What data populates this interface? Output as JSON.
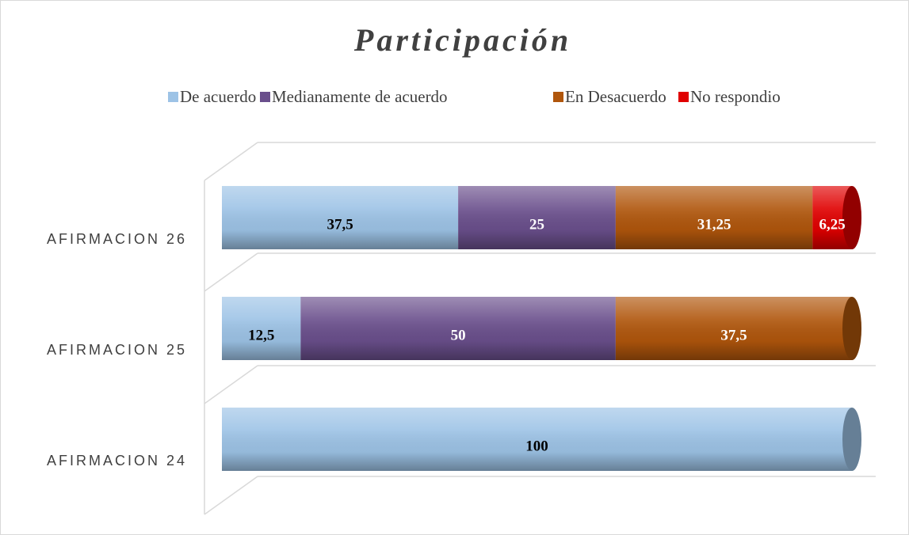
{
  "chart_data": {
    "type": "stacked-bar-horizontal",
    "title": "Participación",
    "categories": [
      "AFIRMACION 26",
      "AFIRMACION 25",
      "AFIRMACION 24"
    ],
    "xlim": [
      0,
      100
    ],
    "legend": "top",
    "series": [
      {
        "name": "De acuerdo",
        "color": "#9dc3e6",
        "values": [
          37.5,
          12.5,
          100
        ],
        "value_labels": [
          "37,5",
          "12,5",
          "100"
        ],
        "label_color": "#000000"
      },
      {
        "name": "Medianamente de acuerdo",
        "color": "#6a4f8c",
        "values": [
          25,
          50,
          null
        ],
        "value_labels": [
          "25",
          "50",
          null
        ],
        "label_color": "#ffffff"
      },
      {
        "name": "En Desacuerdo",
        "color": "#b0560c",
        "values": [
          31.25,
          37.5,
          null
        ],
        "value_labels": [
          "31,25",
          "37,5",
          null
        ],
        "label_color": "#ffffff"
      },
      {
        "name": "No respondio",
        "color": "#e00000",
        "values": [
          6.25,
          null,
          null
        ],
        "value_labels": [
          "6,25",
          null,
          null
        ],
        "label_color": "#ffffff"
      }
    ]
  }
}
